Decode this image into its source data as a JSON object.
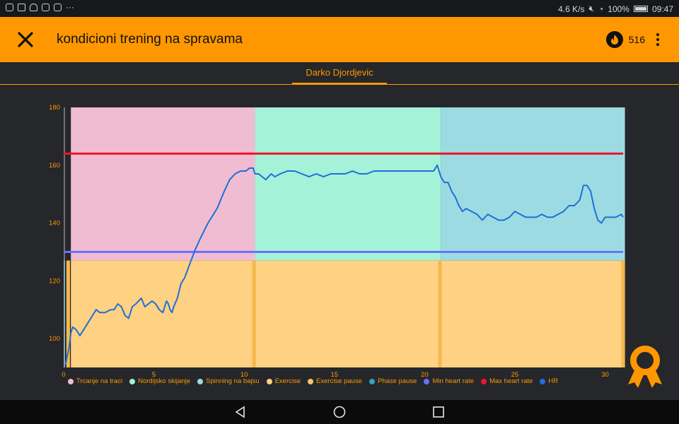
{
  "status_bar": {
    "icons": [
      "instagram-icon",
      "message-icon",
      "chess-icon",
      "gallery-icon",
      "photo-icon"
    ],
    "more": "···",
    "net_speed": "4.6 K/s",
    "battery": "100%",
    "time": "09:47"
  },
  "app_bar": {
    "title": "kondicioni trening na spravama",
    "calories": "516"
  },
  "tabs": [
    {
      "label": "Darko Djordjevic"
    }
  ],
  "colors": {
    "accent": "#ff9800",
    "phase1": "#f0bcd2",
    "phase2": "#a4f2d8",
    "phase3": "#9ddbe3",
    "exercise": "#ffd182",
    "pause": "#f6b84c",
    "hr_line": "#1e6fd9",
    "min_hr": "#6b71ff",
    "max_hr": "#f0142a"
  },
  "chart_data": {
    "type": "line",
    "xlim": [
      0,
      31
    ],
    "ylim": [
      90,
      180
    ],
    "x_ticks": [
      "0",
      "5",
      "10",
      "15",
      "20",
      "25",
      "30"
    ],
    "y_ticks": [
      "100",
      "120",
      "140",
      "160",
      "180"
    ],
    "min_heart_rate": 130,
    "max_heart_rate": 164,
    "phases": [
      {
        "name": "Trcanje na traci",
        "start": 0.4,
        "end": 10.6,
        "color": "#f0bcd2"
      },
      {
        "name": "Nordijsko skijanje",
        "start": 10.6,
        "end": 20.9,
        "color": "#a4f2d8"
      },
      {
        "name": "Spinning na bajsu",
        "start": 20.9,
        "end": 31.1,
        "color": "#9ddbe3"
      }
    ],
    "exercise_band": {
      "y_top": 127
    },
    "pauses": [
      {
        "start": 0.15,
        "end": 0.35
      },
      {
        "start": 10.45,
        "end": 10.65
      },
      {
        "start": 20.75,
        "end": 20.95
      },
      {
        "start": 30.9,
        "end": 31.1
      }
    ],
    "series": [
      {
        "name": "HR",
        "points": [
          [
            0.1,
            91
          ],
          [
            0.2,
            94
          ],
          [
            0.3,
            97
          ],
          [
            0.4,
            102
          ],
          [
            0.5,
            104
          ],
          [
            0.7,
            103
          ],
          [
            0.9,
            101
          ],
          [
            1.2,
            104
          ],
          [
            1.5,
            107
          ],
          [
            1.8,
            110
          ],
          [
            2.0,
            109
          ],
          [
            2.3,
            109
          ],
          [
            2.6,
            110
          ],
          [
            2.8,
            110
          ],
          [
            3.0,
            112
          ],
          [
            3.2,
            111
          ],
          [
            3.4,
            108
          ],
          [
            3.6,
            107
          ],
          [
            3.8,
            111
          ],
          [
            4.0,
            112
          ],
          [
            4.3,
            114
          ],
          [
            4.5,
            111
          ],
          [
            4.7,
            112
          ],
          [
            4.9,
            113
          ],
          [
            5.1,
            112
          ],
          [
            5.3,
            110
          ],
          [
            5.5,
            109
          ],
          [
            5.7,
            113
          ],
          [
            5.8,
            112
          ],
          [
            5.9,
            110
          ],
          [
            6.0,
            109
          ],
          [
            6.1,
            111
          ],
          [
            6.3,
            114
          ],
          [
            6.5,
            119
          ],
          [
            6.7,
            121
          ],
          [
            7.0,
            126
          ],
          [
            7.3,
            131
          ],
          [
            7.6,
            135
          ],
          [
            8.0,
            140
          ],
          [
            8.5,
            145
          ],
          [
            8.9,
            151
          ],
          [
            9.2,
            155
          ],
          [
            9.5,
            157
          ],
          [
            9.8,
            158
          ],
          [
            10.1,
            158
          ],
          [
            10.3,
            159
          ],
          [
            10.5,
            159
          ],
          [
            10.6,
            157
          ],
          [
            10.8,
            157
          ],
          [
            11.0,
            156
          ],
          [
            11.2,
            155
          ],
          [
            11.5,
            157
          ],
          [
            11.7,
            156
          ],
          [
            12.0,
            157
          ],
          [
            12.4,
            158
          ],
          [
            12.8,
            158
          ],
          [
            13.2,
            157
          ],
          [
            13.6,
            156
          ],
          [
            14.0,
            157
          ],
          [
            14.4,
            156
          ],
          [
            14.8,
            157
          ],
          [
            15.2,
            157
          ],
          [
            15.6,
            157
          ],
          [
            16.0,
            158
          ],
          [
            16.4,
            157
          ],
          [
            16.8,
            157
          ],
          [
            17.2,
            158
          ],
          [
            17.6,
            158
          ],
          [
            18.0,
            158
          ],
          [
            18.4,
            158
          ],
          [
            18.8,
            158
          ],
          [
            19.2,
            158
          ],
          [
            19.6,
            158
          ],
          [
            20.0,
            158
          ],
          [
            20.3,
            158
          ],
          [
            20.5,
            158
          ],
          [
            20.7,
            160
          ],
          [
            20.9,
            156
          ],
          [
            21.1,
            154
          ],
          [
            21.3,
            154
          ],
          [
            21.5,
            151
          ],
          [
            21.7,
            149
          ],
          [
            21.9,
            146
          ],
          [
            22.1,
            144
          ],
          [
            22.3,
            145
          ],
          [
            22.6,
            144
          ],
          [
            22.9,
            143
          ],
          [
            23.2,
            141
          ],
          [
            23.5,
            143
          ],
          [
            23.8,
            142
          ],
          [
            24.1,
            141
          ],
          [
            24.4,
            141
          ],
          [
            24.7,
            142
          ],
          [
            25.0,
            144
          ],
          [
            25.3,
            143
          ],
          [
            25.6,
            142
          ],
          [
            25.9,
            142
          ],
          [
            26.2,
            142
          ],
          [
            26.5,
            143
          ],
          [
            26.8,
            142
          ],
          [
            27.1,
            142
          ],
          [
            27.4,
            143
          ],
          [
            27.7,
            144
          ],
          [
            28.0,
            146
          ],
          [
            28.3,
            146
          ],
          [
            28.6,
            148
          ],
          [
            28.8,
            153
          ],
          [
            29.0,
            153
          ],
          [
            29.2,
            151
          ],
          [
            29.4,
            145
          ],
          [
            29.6,
            141
          ],
          [
            29.8,
            140
          ],
          [
            30.0,
            142
          ],
          [
            30.3,
            142
          ],
          [
            30.6,
            142
          ],
          [
            30.9,
            143
          ],
          [
            31.0,
            142
          ]
        ]
      }
    ]
  },
  "legend": [
    {
      "label": "Trcanje na traci",
      "color": "#f0bcd2"
    },
    {
      "label": "Nordijsko skijanje",
      "color": "#a4f2d8"
    },
    {
      "label": "Spinning na bajsu",
      "color": "#9ddbe3"
    },
    {
      "label": "Exercise",
      "color": "#ffd182"
    },
    {
      "label": "Exercise pause",
      "color": "#f6c565"
    },
    {
      "label": "Phase pause",
      "color": "#2fa3b8"
    },
    {
      "label": "Min heart rate",
      "color": "#6b71ff"
    },
    {
      "label": "Max heart rate",
      "color": "#f0142a"
    },
    {
      "label": "HR",
      "color": "#1e6fd9"
    }
  ],
  "nav": [
    "back-icon",
    "home-icon",
    "recents-icon"
  ]
}
